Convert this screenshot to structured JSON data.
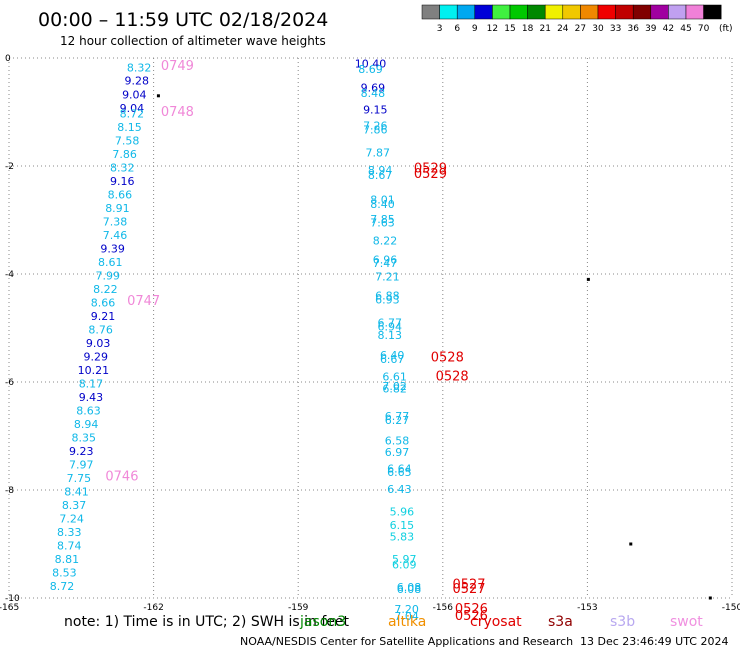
{
  "header": {
    "title": "00:00 – 11:59 UTC 02/18/2024",
    "subtitle": "12 hour collection of altimeter wave heights"
  },
  "color_scale": {
    "unit": "(ft)",
    "ticks": [
      "3",
      "6",
      "9",
      "12",
      "15",
      "18",
      "21",
      "24",
      "27",
      "30",
      "33",
      "36",
      "39",
      "42",
      "45",
      "70"
    ],
    "colors": [
      "#808080",
      "#00f0f0",
      "#00a8f0",
      "#0000d8",
      "#40f040",
      "#00c800",
      "#008800",
      "#f0f000",
      "#f0c800",
      "#f08800",
      "#f00000",
      "#c00000",
      "#800000",
      "#a000a0",
      "#c0a0f0",
      "#f080d8",
      "#000000"
    ]
  },
  "footer": {
    "note": "note:  1) Time is in UTC; 2) SWH is in feet",
    "credit": "NOAA/NESDIS Center for Satellite Applications and Research",
    "timestamp": "13 Dec 23:46:49 UTC 2024",
    "satellites": [
      {
        "name": "jason3",
        "color": "#008800"
      },
      {
        "name": "altika",
        "color": "#f09000"
      },
      {
        "name": "cryosat",
        "color": "#e00000"
      },
      {
        "name": "s3a",
        "color": "#900000"
      },
      {
        "name": "s3b",
        "color": "#b8a8f0"
      },
      {
        "name": "swot",
        "color": "#f090e0"
      }
    ]
  },
  "chart_data": {
    "type": "scatter",
    "title": "00:00 – 11:59 UTC 02/18/2024",
    "xlim": [
      -165,
      -150
    ],
    "ylim": [
      -10,
      0
    ],
    "x_ticks": [
      "-165",
      "-162",
      "-159",
      "-156",
      "-153",
      "-150"
    ],
    "x_tick_values": [
      -165,
      -162,
      -159,
      -156,
      -153,
      -150
    ],
    "y_ticks": [
      "0",
      "-2",
      "-4",
      "-6",
      "-8",
      "-10"
    ],
    "y_tick_values": [
      0,
      -2,
      -4,
      -6,
      -8,
      -10
    ],
    "grid": true,
    "series": [
      {
        "color_hint": "swath-left",
        "points": [
          {
            "lon": -162.3,
            "lat": -0.18,
            "swh": "8.32",
            "color": "#10b8e8"
          },
          {
            "lon": -162.35,
            "lat": -0.42,
            "swh": "9.28",
            "color": "#0000c8"
          },
          {
            "lon": -162.4,
            "lat": -0.68,
            "swh": "9.04",
            "color": "#0000c8"
          },
          {
            "lon": -162.45,
            "lat": -0.93,
            "swh": "9.04",
            "color": "#0000c8"
          },
          {
            "lon": -162.45,
            "lat": -1.03,
            "swh": "8.72",
            "color": "#10b8e8"
          },
          {
            "lon": -162.5,
            "lat": -1.28,
            "swh": "8.15",
            "color": "#10b8e8"
          },
          {
            "lon": -162.55,
            "lat": -1.53,
            "swh": "7.58",
            "color": "#10b8e8"
          },
          {
            "lon": -162.6,
            "lat": -1.78,
            "swh": "7.86",
            "color": "#10b8e8"
          },
          {
            "lon": -162.65,
            "lat": -2.03,
            "swh": "8.32",
            "color": "#10b8e8"
          },
          {
            "lon": -162.65,
            "lat": -2.28,
            "swh": "9.16",
            "color": "#0000c8"
          },
          {
            "lon": -162.7,
            "lat": -2.53,
            "swh": "8.66",
            "color": "#10b8e8"
          },
          {
            "lon": -162.75,
            "lat": -2.78,
            "swh": "8.91",
            "color": "#10b8e8"
          },
          {
            "lon": -162.8,
            "lat": -3.03,
            "swh": "7.38",
            "color": "#10b8e8"
          },
          {
            "lon": -162.8,
            "lat": -3.28,
            "swh": "7.46",
            "color": "#10b8e8"
          },
          {
            "lon": -162.85,
            "lat": -3.53,
            "swh": "9.39",
            "color": "#0000c8"
          },
          {
            "lon": -162.9,
            "lat": -3.78,
            "swh": "8.61",
            "color": "#10b8e8"
          },
          {
            "lon": -162.95,
            "lat": -4.03,
            "swh": "7.99",
            "color": "#10b8e8"
          },
          {
            "lon": -163.0,
            "lat": -4.28,
            "swh": "8.22",
            "color": "#10b8e8"
          },
          {
            "lon": -163.05,
            "lat": -4.53,
            "swh": "8.66",
            "color": "#10b8e8"
          },
          {
            "lon": -163.05,
            "lat": -4.78,
            "swh": "9.21",
            "color": "#0000c8"
          },
          {
            "lon": -163.1,
            "lat": -5.03,
            "swh": "8.76",
            "color": "#10b8e8"
          },
          {
            "lon": -163.15,
            "lat": -5.28,
            "swh": "9.03",
            "color": "#0000c8"
          },
          {
            "lon": -163.2,
            "lat": -5.53,
            "swh": "9.29",
            "color": "#0000c8"
          },
          {
            "lon": -163.25,
            "lat": -5.78,
            "swh": "10.21",
            "color": "#0000c8"
          },
          {
            "lon": -163.3,
            "lat": -6.03,
            "swh": "8.17",
            "color": "#10b8e8"
          },
          {
            "lon": -163.3,
            "lat": -6.28,
            "swh": "9.43",
            "color": "#0000c8"
          },
          {
            "lon": -163.35,
            "lat": -6.53,
            "swh": "8.63",
            "color": "#10b8e8"
          },
          {
            "lon": -163.4,
            "lat": -6.78,
            "swh": "8.94",
            "color": "#10b8e8"
          },
          {
            "lon": -163.45,
            "lat": -7.03,
            "swh": "8.35",
            "color": "#10b8e8"
          },
          {
            "lon": -163.5,
            "lat": -7.28,
            "swh": "9.23",
            "color": "#0000c8"
          },
          {
            "lon": -163.5,
            "lat": -7.53,
            "swh": "7.97",
            "color": "#10b8e8"
          },
          {
            "lon": -163.55,
            "lat": -7.78,
            "swh": "7.75",
            "color": "#10b8e8"
          },
          {
            "lon": -163.6,
            "lat": -8.03,
            "swh": "8.41",
            "color": "#10b8e8"
          },
          {
            "lon": -163.65,
            "lat": -8.28,
            "swh": "8.37",
            "color": "#10b8e8"
          },
          {
            "lon": -163.7,
            "lat": -8.53,
            "swh": "7.24",
            "color": "#10b8e8"
          },
          {
            "lon": -163.75,
            "lat": -8.78,
            "swh": "8.33",
            "color": "#10b8e8"
          },
          {
            "lon": -163.75,
            "lat": -9.03,
            "swh": "8.74",
            "color": "#10b8e8"
          },
          {
            "lon": -163.8,
            "lat": -9.28,
            "swh": "8.81",
            "color": "#10b8e8"
          },
          {
            "lon": -163.85,
            "lat": -9.53,
            "swh": "8.53",
            "color": "#10b8e8"
          },
          {
            "lon": -163.9,
            "lat": -9.78,
            "swh": "8.72",
            "color": "#10b8e8"
          }
        ]
      },
      {
        "color_hint": "swath-right",
        "points": [
          {
            "lon": -157.5,
            "lat": -0.1,
            "swh": "10.40",
            "color": "#0000c8"
          },
          {
            "lon": -157.5,
            "lat": -0.2,
            "swh": "8.69",
            "color": "#10b8e8"
          },
          {
            "lon": -157.45,
            "lat": -0.55,
            "swh": "9.69",
            "color": "#0000c8"
          },
          {
            "lon": -157.45,
            "lat": -0.65,
            "swh": "8.48",
            "color": "#10b8e8"
          },
          {
            "lon": -157.4,
            "lat": -0.95,
            "swh": "9.15",
            "color": "#0000c8"
          },
          {
            "lon": -157.4,
            "lat": -1.25,
            "swh": "7.26",
            "color": "#10b8e8"
          },
          {
            "lon": -157.4,
            "lat": -1.32,
            "swh": "7.86",
            "color": "#10b8e8"
          },
          {
            "lon": -157.35,
            "lat": -1.75,
            "swh": "7.87",
            "color": "#10b8e8"
          },
          {
            "lon": -157.3,
            "lat": -2.07,
            "swh": "8.94",
            "color": "#10b8e8"
          },
          {
            "lon": -157.3,
            "lat": -2.17,
            "swh": "8.67",
            "color": "#10b8e8"
          },
          {
            "lon": -157.25,
            "lat": -2.62,
            "swh": "8.01",
            "color": "#10b8e8"
          },
          {
            "lon": -157.25,
            "lat": -2.7,
            "swh": "8.40",
            "color": "#10b8e8"
          },
          {
            "lon": -157.25,
            "lat": -2.98,
            "swh": "7.85",
            "color": "#10b8e8"
          },
          {
            "lon": -157.25,
            "lat": -3.05,
            "swh": "7.63",
            "color": "#10b8e8"
          },
          {
            "lon": -157.2,
            "lat": -3.38,
            "swh": "8.22",
            "color": "#10b8e8"
          },
          {
            "lon": -157.2,
            "lat": -3.73,
            "swh": "6.96",
            "color": "#10b8e8"
          },
          {
            "lon": -157.2,
            "lat": -3.8,
            "swh": "7.47",
            "color": "#10b8e8"
          },
          {
            "lon": -157.15,
            "lat": -4.05,
            "swh": "7.21",
            "color": "#10b8e8"
          },
          {
            "lon": -157.15,
            "lat": -4.4,
            "swh": "6.88",
            "color": "#10b8e8"
          },
          {
            "lon": -157.15,
            "lat": -4.47,
            "swh": "6.93",
            "color": "#10b8e8"
          },
          {
            "lon": -157.1,
            "lat": -4.9,
            "swh": "6.77",
            "color": "#10b8e8"
          },
          {
            "lon": -157.1,
            "lat": -4.97,
            "swh": "6.94",
            "color": "#10b8e8"
          },
          {
            "lon": -157.1,
            "lat": -5.13,
            "swh": "8.13",
            "color": "#10b8e8"
          },
          {
            "lon": -157.05,
            "lat": -5.5,
            "swh": "6.40",
            "color": "#10b8e8"
          },
          {
            "lon": -157.05,
            "lat": -5.57,
            "swh": "6.67",
            "color": "#10b8e8"
          },
          {
            "lon": -157.0,
            "lat": -5.9,
            "swh": "6.61",
            "color": "#10b8e8"
          },
          {
            "lon": -157.0,
            "lat": -6.07,
            "swh": "7.02",
            "color": "#10b8e8"
          },
          {
            "lon": -157.0,
            "lat": -6.12,
            "swh": "6.82",
            "color": "#10b8e8"
          },
          {
            "lon": -156.95,
            "lat": -6.63,
            "swh": "6.77",
            "color": "#10b8e8"
          },
          {
            "lon": -156.95,
            "lat": -6.7,
            "swh": "6.27",
            "color": "#10b8e8"
          },
          {
            "lon": -156.95,
            "lat": -7.08,
            "swh": "6.58",
            "color": "#10b8e8"
          },
          {
            "lon": -156.95,
            "lat": -7.3,
            "swh": "6.97",
            "color": "#10b8e8"
          },
          {
            "lon": -156.9,
            "lat": -7.6,
            "swh": "6.64",
            "color": "#10b8e8"
          },
          {
            "lon": -156.9,
            "lat": -7.67,
            "swh": "6.65",
            "color": "#10b8e8"
          },
          {
            "lon": -156.9,
            "lat": -7.98,
            "swh": "6.43",
            "color": "#10b8e8"
          },
          {
            "lon": -156.85,
            "lat": -8.4,
            "swh": "5.96",
            "color": "#10d0e0"
          },
          {
            "lon": -156.85,
            "lat": -8.65,
            "swh": "6.15",
            "color": "#10d0e0"
          },
          {
            "lon": -156.85,
            "lat": -8.86,
            "swh": "5.83",
            "color": "#10d0e0"
          },
          {
            "lon": -156.8,
            "lat": -9.28,
            "swh": "5.97",
            "color": "#10d0e0"
          },
          {
            "lon": -156.8,
            "lat": -9.38,
            "swh": "6.09",
            "color": "#10d0e0"
          },
          {
            "lon": -156.7,
            "lat": -9.8,
            "swh": "6.08",
            "color": "#10b8e8"
          },
          {
            "lon": -156.7,
            "lat": -9.83,
            "swh": "6.08",
            "color": "#10b8e8"
          },
          {
            "lon": -156.75,
            "lat": -10.2,
            "swh": "7.20",
            "color": "#10b8e8"
          },
          {
            "lon": -156.75,
            "lat": -10.33,
            "swh": "7.04",
            "color": "#10b8e8"
          }
        ]
      },
      {
        "color_hint": "time-labels",
        "points": [
          {
            "lon": -161.85,
            "lat": -0.15,
            "text": "0749",
            "color": "#f088d8"
          },
          {
            "lon": -161.85,
            "lat": -1.0,
            "text": "0748",
            "color": "#f088d8"
          },
          {
            "lon": -162.55,
            "lat": -4.5,
            "text": "0747",
            "color": "#f088d8"
          },
          {
            "lon": -163.0,
            "lat": -7.75,
            "text": "0746",
            "color": "#f088d8"
          },
          {
            "lon": -156.6,
            "lat": -2.05,
            "text": "0529",
            "color": "#e00000"
          },
          {
            "lon": -156.6,
            "lat": -2.15,
            "text": "0529",
            "color": "#e00000"
          },
          {
            "lon": -156.25,
            "lat": -5.55,
            "text": "0528",
            "color": "#e00000"
          },
          {
            "lon": -156.15,
            "lat": -5.9,
            "text": "0528",
            "color": "#e00000"
          },
          {
            "lon": -155.8,
            "lat": -9.75,
            "text": "0527",
            "color": "#e00000"
          },
          {
            "lon": -155.8,
            "lat": -9.83,
            "text": "0527",
            "color": "#e00000"
          },
          {
            "lon": -155.75,
            "lat": -10.2,
            "text": "0526",
            "color": "#e00000"
          },
          {
            "lon": -155.75,
            "lat": -10.33,
            "text": "0526",
            "color": "#e00000"
          }
        ]
      }
    ]
  }
}
